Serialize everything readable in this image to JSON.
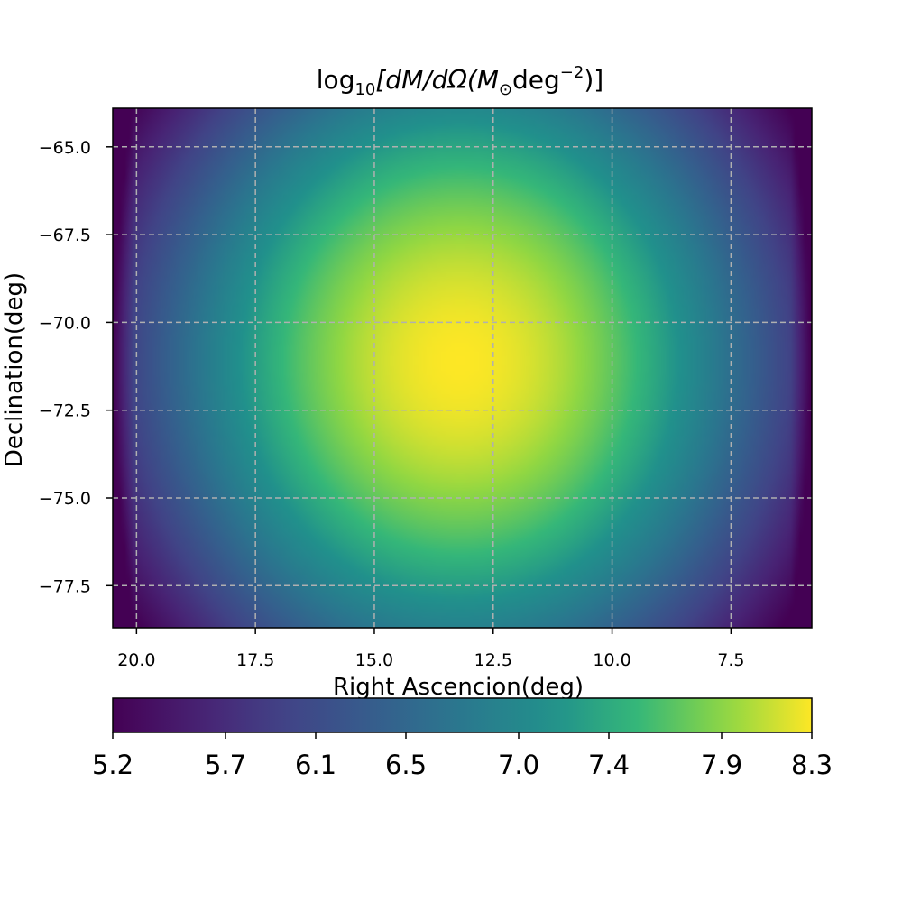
{
  "chart_data": {
    "type": "heatmap",
    "title": "log10[dM/dΩ(M⊙deg−2)]",
    "title_parts": {
      "prefix": "log",
      "prefix_sub": "10",
      "body": "[dM/dΩ(M",
      "body_sub": "⊙",
      "unit": "deg",
      "unit_sup": "−2",
      "suffix": ")]"
    },
    "xlabel": "Right Ascencion(deg)",
    "ylabel": "Declination(deg)",
    "x_reversed": true,
    "xlim": [
      20.5,
      5.8
    ],
    "ylim": [
      -78.7,
      -63.9
    ],
    "xticks": [
      20.0,
      17.5,
      15.0,
      12.5,
      10.0,
      7.5
    ],
    "xtick_labels": [
      "20.0",
      "17.5",
      "15.0",
      "12.5",
      "10.0",
      "7.5"
    ],
    "yticks": [
      -65.0,
      -67.5,
      -70.0,
      -72.5,
      -75.0,
      -77.5
    ],
    "ytick_labels": [
      "−65.0",
      "−67.5",
      "−70.0",
      "−72.5",
      "−75.0",
      "−77.5"
    ],
    "grid": true,
    "colormap": "viridis",
    "peak": {
      "ra": 13.2,
      "dec": -71.1,
      "value": 8.3
    },
    "min_value": 5.2,
    "colorbar": {
      "orientation": "horizontal",
      "range": [
        5.2,
        8.3
      ],
      "ticks": [
        5.2,
        5.7,
        6.1,
        6.5,
        7.0,
        7.4,
        7.9,
        8.3
      ],
      "tick_labels": [
        "5.2",
        "5.7",
        "6.1",
        "6.5",
        "7.0",
        "7.4",
        "7.9",
        "8.3"
      ]
    }
  }
}
